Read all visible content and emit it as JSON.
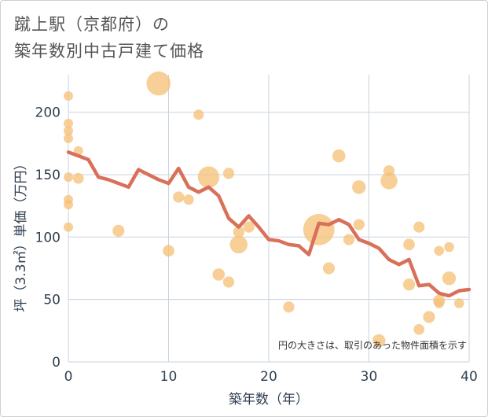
{
  "title_lines": [
    "蹴上駅（京都府）の",
    "築年数別中古戸建て価格"
  ],
  "chart_data": {
    "type": "scatter+line",
    "title": "蹴上駅（京都府）の築年数別中古戸建て価格",
    "xlabel": "築年数（年）",
    "ylabel": "坪（3.3㎡）単価（万円）",
    "xlim": [
      0,
      40
    ],
    "ylim": [
      0,
      230
    ],
    "xticks": [
      0,
      10,
      20,
      30,
      40
    ],
    "yticks": [
      0,
      50,
      100,
      150,
      200
    ],
    "grid": true,
    "annotation": "円の大きさは、取引のあった物件面積を示す",
    "colors": {
      "bubble": "#f5c27a",
      "line": "#d9705a",
      "grid": "#c8d3df"
    },
    "scatter": [
      {
        "x": 0,
        "y": 213,
        "size": 1
      },
      {
        "x": 0,
        "y": 191,
        "size": 1
      },
      {
        "x": 0,
        "y": 185,
        "size": 1
      },
      {
        "x": 0,
        "y": 179,
        "size": 1
      },
      {
        "x": 0,
        "y": 148,
        "size": 1
      },
      {
        "x": 0,
        "y": 130,
        "size": 1
      },
      {
        "x": 0,
        "y": 126,
        "size": 1
      },
      {
        "x": 0,
        "y": 108,
        "size": 1
      },
      {
        "x": 1,
        "y": 169,
        "size": 1
      },
      {
        "x": 1,
        "y": 147,
        "size": 1.3
      },
      {
        "x": 5,
        "y": 105,
        "size": 1.6
      },
      {
        "x": 9,
        "y": 223,
        "size": 6.5
      },
      {
        "x": 10,
        "y": 89,
        "size": 1.5
      },
      {
        "x": 11,
        "y": 132,
        "size": 1.4
      },
      {
        "x": 12,
        "y": 130,
        "size": 1.2
      },
      {
        "x": 13,
        "y": 198,
        "size": 1.2
      },
      {
        "x": 14,
        "y": 148,
        "size": 5.2
      },
      {
        "x": 15,
        "y": 70,
        "size": 1.7
      },
      {
        "x": 16,
        "y": 151,
        "size": 1.4
      },
      {
        "x": 16,
        "y": 64,
        "size": 1.4
      },
      {
        "x": 17,
        "y": 104,
        "size": 1.4
      },
      {
        "x": 17,
        "y": 94,
        "size": 3.5
      },
      {
        "x": 18,
        "y": 108,
        "size": 1.4
      },
      {
        "x": 22,
        "y": 44,
        "size": 1.4
      },
      {
        "x": 25,
        "y": 106,
        "size": 11
      },
      {
        "x": 26,
        "y": 75,
        "size": 1.6
      },
      {
        "x": 27,
        "y": 165,
        "size": 1.9
      },
      {
        "x": 28,
        "y": 98,
        "size": 1.4
      },
      {
        "x": 29,
        "y": 140,
        "size": 2.1
      },
      {
        "x": 29,
        "y": 110,
        "size": 1.4
      },
      {
        "x": 31,
        "y": 17,
        "size": 1.9
      },
      {
        "x": 32,
        "y": 153,
        "size": 1.4
      },
      {
        "x": 32,
        "y": 145,
        "size": 3.2
      },
      {
        "x": 34,
        "y": 94,
        "size": 1.5
      },
      {
        "x": 34,
        "y": 62,
        "size": 1.6
      },
      {
        "x": 35,
        "y": 108,
        "size": 1.4
      },
      {
        "x": 35,
        "y": 26,
        "size": 1.3
      },
      {
        "x": 36,
        "y": 36,
        "size": 1.6
      },
      {
        "x": 37,
        "y": 89,
        "size": 1.1
      },
      {
        "x": 37,
        "y": 49,
        "size": 1.6
      },
      {
        "x": 37,
        "y": 47,
        "size": 1.1
      },
      {
        "x": 38,
        "y": 92,
        "size": 1.1
      },
      {
        "x": 38,
        "y": 67,
        "size": 2.1
      },
      {
        "x": 39,
        "y": 47,
        "size": 1.1
      }
    ],
    "line": {
      "x": [
        0,
        1,
        2,
        3,
        4,
        5,
        6,
        7,
        8,
        9,
        10,
        11,
        12,
        13,
        14,
        15,
        16,
        17,
        18,
        19,
        20,
        21,
        22,
        23,
        24,
        25,
        26,
        27,
        28,
        29,
        30,
        31,
        32,
        33,
        34,
        35,
        36,
        37,
        38,
        39,
        40
      ],
      "y": [
        168,
        165,
        162,
        148,
        146,
        143,
        140,
        154,
        150,
        146,
        143,
        155,
        140,
        136,
        140,
        133,
        115,
        108,
        117,
        108,
        98,
        97,
        94,
        93,
        86,
        111,
        110,
        114,
        110,
        98,
        95,
        91,
        82,
        78,
        82,
        61,
        62,
        55,
        53,
        57,
        58
      ]
    }
  }
}
